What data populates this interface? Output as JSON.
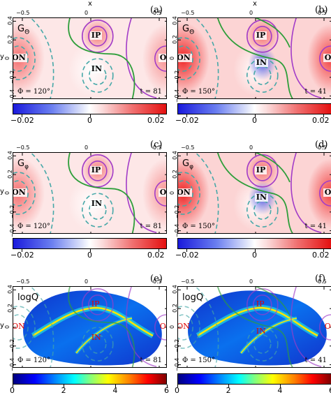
{
  "axis": {
    "x_name": "x",
    "y_name": "y"
  },
  "x_ticks": [
    "−0.5",
    "0",
    "0.5"
  ],
  "y_ticks": [
    "0.4",
    "0.2",
    "0",
    "−0.2",
    "−0.4"
  ],
  "panels": [
    {
      "id": "a",
      "tag": "(a)",
      "quantity": "G",
      "sub": "Θ",
      "phi": "Φ = 120°",
      "t": "t = 81"
    },
    {
      "id": "b",
      "tag": "(b)",
      "quantity": "G",
      "sub": "Θ",
      "phi": "Φ = 150°",
      "t": "t = 41"
    },
    {
      "id": "c",
      "tag": "(c)",
      "quantity": "G",
      "sub": "φ",
      "phi": "Φ = 120°",
      "t": "t = 81"
    },
    {
      "id": "d",
      "tag": "(d)",
      "quantity": "G",
      "sub": "φ",
      "phi": "Φ = 150°",
      "t": "t = 41"
    },
    {
      "id": "e",
      "tag": "(e)",
      "quantity": "logQ",
      "sub": "",
      "phi": "Φ = 120°",
      "t": "t = 81"
    },
    {
      "id": "f",
      "tag": "(f)",
      "quantity": "logQ",
      "sub": "",
      "phi": "Φ = 150°",
      "t": "t = 41"
    }
  ],
  "region_labels": {
    "on": "ON",
    "ip": "IP",
    "in": "IN",
    "op": "OP"
  },
  "colorbars": {
    "g": [
      "−0.02",
      "0",
      "0.02"
    ],
    "q": [
      "0",
      "2",
      "4",
      "6"
    ]
  },
  "colors": {
    "green_line": "#2e9e3a",
    "purple_line": "#a23cc8",
    "cyan_dashed": "#45a8a8",
    "negative": "#2233dd",
    "positive": "#ee1111"
  }
}
